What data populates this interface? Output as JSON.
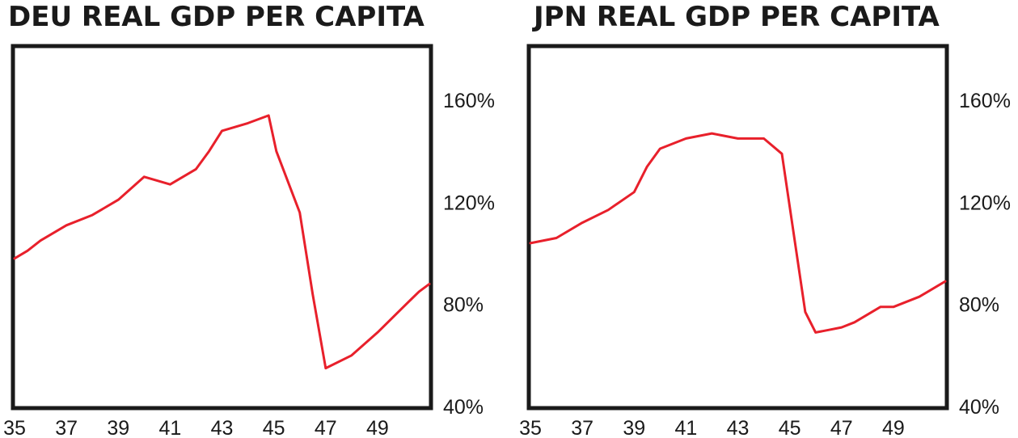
{
  "colors": {
    "line": "#e8202b",
    "frame": "#1a1a1a"
  },
  "chart_data": [
    {
      "type": "line",
      "title": "DEU REAL GDP PER CAPITA",
      "xlabel": "",
      "ylabel": "",
      "x_tick_labels": [
        "35",
        "37",
        "39",
        "41",
        "43",
        "45",
        "47",
        "49"
      ],
      "x_ticks": [
        1935,
        1937,
        1939,
        1941,
        1943,
        1945,
        1947,
        1949
      ],
      "xlim": [
        1935,
        1951
      ],
      "y_tick_labels": [
        "40%",
        "80%",
        "120%",
        "160%"
      ],
      "y_ticks": [
        40,
        80,
        120,
        160
      ],
      "ylim": [
        40,
        176
      ],
      "y_axis_side": "right",
      "grid": false,
      "series": [
        {
          "color": "#e8202b",
          "x": [
            1935,
            1935.5,
            1936,
            1937,
            1938,
            1939,
            1940,
            1941,
            1942,
            1942.5,
            1943,
            1944,
            1944.8,
            1945.1,
            1946,
            1946.5,
            1947,
            1948,
            1949,
            1950,
            1950.6,
            1951
          ],
          "y": [
            98,
            101,
            105,
            111,
            115,
            121,
            130,
            127,
            133,
            140,
            148,
            151,
            154,
            140,
            116,
            84,
            55,
            60,
            69,
            79,
            85,
            88
          ]
        }
      ]
    },
    {
      "type": "line",
      "title": "JPN REAL GDP PER CAPITA",
      "xlabel": "",
      "ylabel": "",
      "x_tick_labels": [
        "35",
        "37",
        "39",
        "41",
        "43",
        "45",
        "47",
        "49"
      ],
      "x_ticks": [
        1935,
        1937,
        1939,
        1941,
        1943,
        1945,
        1947,
        1949
      ],
      "xlim": [
        1935,
        1951
      ],
      "y_tick_labels": [
        "40%",
        "80%",
        "120%",
        "160%"
      ],
      "y_ticks": [
        40,
        80,
        120,
        160
      ],
      "ylim": [
        40,
        176
      ],
      "y_axis_side": "right",
      "grid": false,
      "series": [
        {
          "color": "#e8202b",
          "x": [
            1935,
            1936,
            1937,
            1938,
            1939,
            1939.5,
            1940,
            1941,
            1942,
            1943,
            1944,
            1944.7,
            1945.6,
            1946,
            1946.5,
            1947,
            1947.5,
            1948,
            1948.5,
            1949,
            1950,
            1951
          ],
          "y": [
            104,
            106,
            112,
            117,
            124,
            134,
            141,
            145,
            147,
            145,
            145,
            139,
            77,
            69,
            70,
            71,
            73,
            76,
            79,
            79,
            83,
            89
          ]
        }
      ]
    }
  ]
}
